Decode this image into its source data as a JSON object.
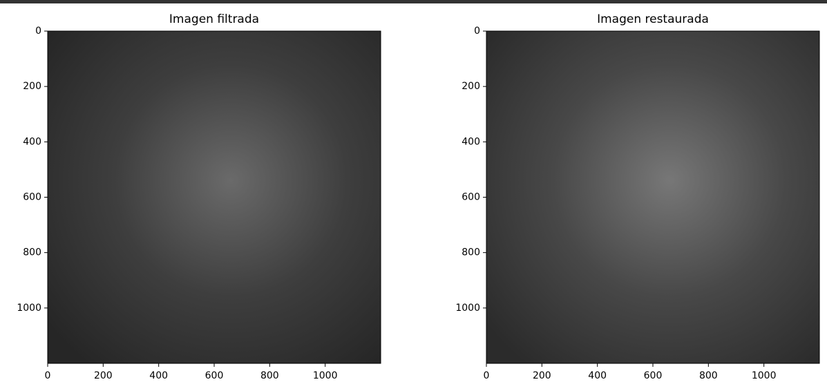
{
  "chart_data": [
    {
      "type": "image",
      "title": "Imagen filtrada",
      "xlim": [
        0,
        1200
      ],
      "ylim": [
        1200,
        0
      ],
      "xticks": [
        0,
        200,
        400,
        600,
        800,
        1000
      ],
      "yticks": [
        0,
        200,
        400,
        600,
        800,
        1000
      ]
    },
    {
      "type": "image",
      "title": "Imagen restaurada",
      "xlim": [
        0,
        1200
      ],
      "ylim": [
        1200,
        0
      ],
      "xticks": [
        0,
        200,
        400,
        600,
        800,
        1000
      ],
      "yticks": [
        0,
        200,
        400,
        600,
        800,
        1000
      ]
    }
  ]
}
